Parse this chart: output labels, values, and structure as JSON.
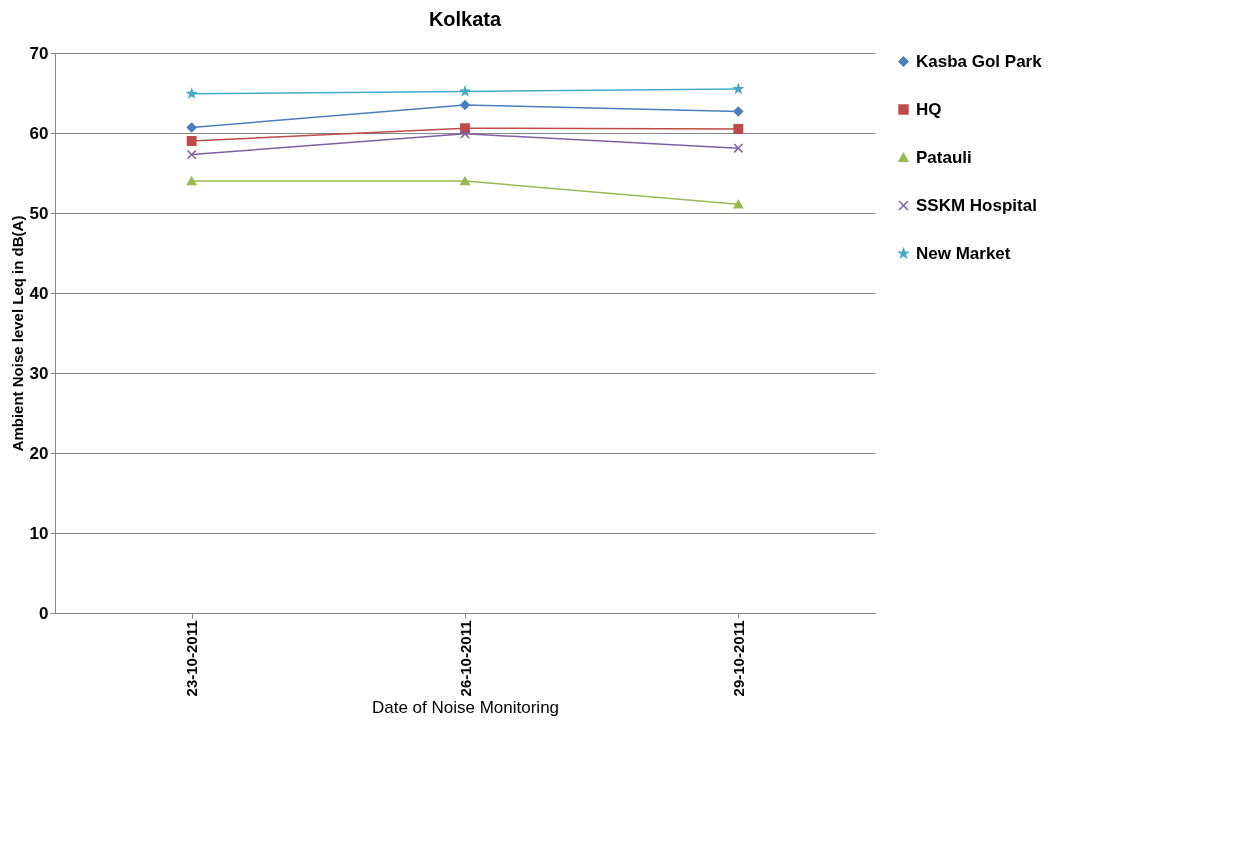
{
  "chart_data": {
    "type": "line",
    "title": "Kolkata",
    "xlabel": "Date of Noise Monitoring",
    "ylabel": "Ambient Noise level Leq in dB(A)",
    "categories": [
      "23-10-2011",
      "26-10-2011",
      "29-10-2011"
    ],
    "series": [
      {
        "name": "Kasba Gol Park",
        "color": "#4a7ebb",
        "marker": "diamond",
        "values": [
          60.7,
          63.5,
          62.7
        ]
      },
      {
        "name": "HQ",
        "color": "#be4b48",
        "marker": "square",
        "values": [
          59.0,
          60.6,
          60.5
        ]
      },
      {
        "name": "Patauli",
        "color": "#98b954",
        "marker": "triangle",
        "values": [
          54.0,
          54.0,
          51.1
        ]
      },
      {
        "name": "SSKM Hospital",
        "color": "#7d60a0",
        "marker": "cross",
        "values": [
          57.3,
          59.9,
          58.1
        ]
      },
      {
        "name": "New Market",
        "color": "#46aac5",
        "marker": "star",
        "values": [
          64.9,
          65.2,
          65.5
        ]
      }
    ],
    "ylim": [
      0,
      70
    ],
    "yticks": [
      0,
      10,
      20,
      30,
      40,
      50,
      60,
      70
    ],
    "grid": "y",
    "legend": "right"
  }
}
